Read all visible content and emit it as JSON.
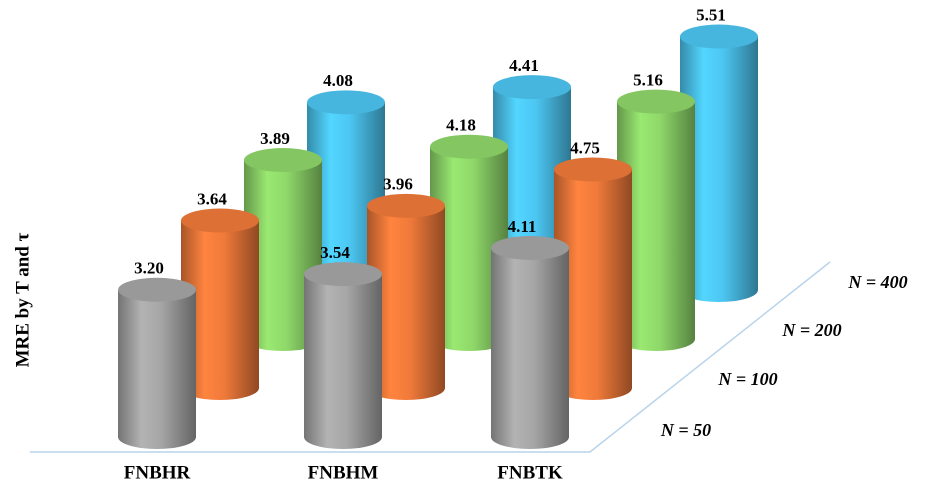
{
  "chart_data": {
    "type": "bar",
    "y_label": "MRE by T and τ",
    "categories": [
      "FNBHR",
      "FNBHM",
      "FNBTK"
    ],
    "series": [
      {
        "name": "N = 50",
        "color": "#a6a6a6",
        "values": [
          3.2,
          3.54,
          4.11
        ],
        "value_labels": [
          "3.20",
          "3.54",
          "4.11"
        ]
      },
      {
        "name": "N = 100",
        "color": "#f07a3a",
        "values": [
          3.64,
          3.96,
          4.75
        ]
      },
      {
        "name": "N = 200",
        "color": "#8fd86a",
        "values": [
          3.89,
          4.18,
          5.16
        ]
      },
      {
        "name": "N = 400",
        "color": "#4cc6f2",
        "values": [
          4.08,
          4.41,
          5.51
        ]
      }
    ]
  }
}
